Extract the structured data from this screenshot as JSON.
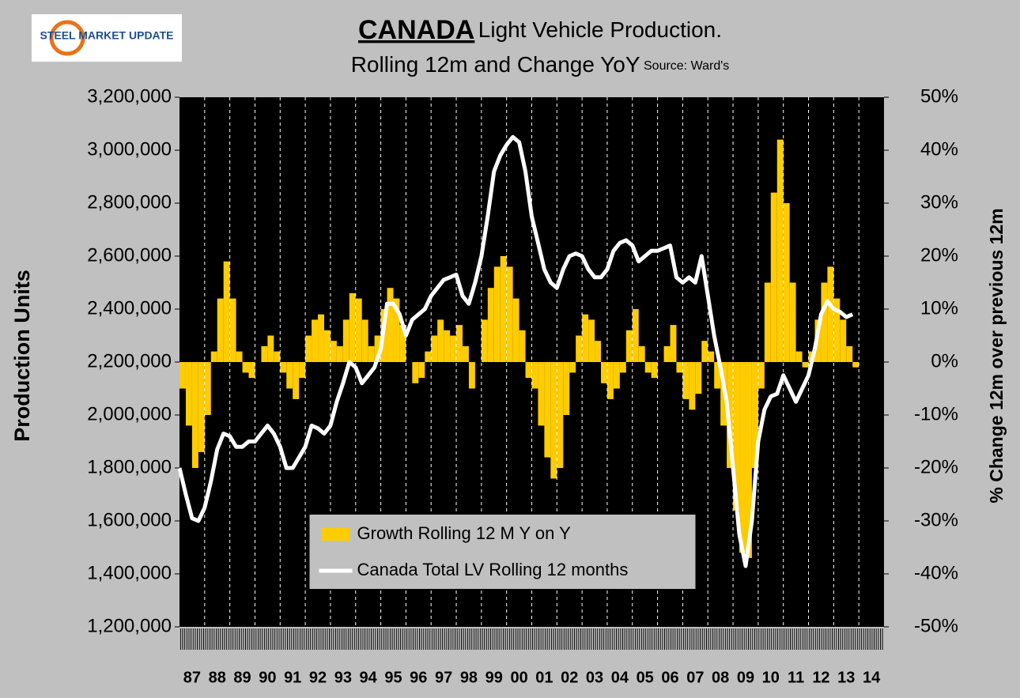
{
  "chart_data": {
    "type": "combo",
    "logo": "STEEL MARKET UPDATE",
    "title": "CANADA",
    "title_rest": "Light Vehicle Production.",
    "subtitle": "Rolling 12m and Change YoY",
    "source": "Source: Ward's",
    "y_label": "Production Units",
    "y2_label": "% Change 12m over previous 12m",
    "legend": "lower center",
    "xlim": [
      1987,
      2015
    ],
    "xticks": [
      {
        "value": 1987,
        "label": "87"
      },
      {
        "value": 1988,
        "label": "88"
      },
      {
        "value": 1989,
        "label": "89"
      },
      {
        "value": 1990,
        "label": "90"
      },
      {
        "value": 1991,
        "label": "91"
      },
      {
        "value": 1992,
        "label": "92"
      },
      {
        "value": 1993,
        "label": "93"
      },
      {
        "value": 1994,
        "label": "94"
      },
      {
        "value": 1995,
        "label": "95"
      },
      {
        "value": 1996,
        "label": "96"
      },
      {
        "value": 1997,
        "label": "97"
      },
      {
        "value": 1998,
        "label": "98"
      },
      {
        "value": 1999,
        "label": "99"
      },
      {
        "value": 2000,
        "label": "00"
      },
      {
        "value": 2001,
        "label": "01"
      },
      {
        "value": 2002,
        "label": "02"
      },
      {
        "value": 2003,
        "label": "03"
      },
      {
        "value": 2004,
        "label": "04"
      },
      {
        "value": 2005,
        "label": "05"
      },
      {
        "value": 2006,
        "label": "06"
      },
      {
        "value": 2007,
        "label": "07"
      },
      {
        "value": 2008,
        "label": "08"
      },
      {
        "value": 2009,
        "label": "09"
      },
      {
        "value": 2010,
        "label": "10"
      },
      {
        "value": 2011,
        "label": "11"
      },
      {
        "value": 2012,
        "label": "12"
      },
      {
        "value": 2013,
        "label": "13"
      },
      {
        "value": 2014,
        "label": "14"
      }
    ],
    "ylim": [
      1200000,
      3200000
    ],
    "yticks": [
      {
        "value": 1200000,
        "label": "1,200,000"
      },
      {
        "value": 1400000,
        "label": "1,400,000"
      },
      {
        "value": 1600000,
        "label": "1,600,000"
      },
      {
        "value": 1800000,
        "label": "1,800,000"
      },
      {
        "value": 2000000,
        "label": "2,000,000"
      },
      {
        "value": 2200000,
        "label": "2,200,000"
      },
      {
        "value": 2400000,
        "label": "2,400,000"
      },
      {
        "value": 2600000,
        "label": "2,600,000"
      },
      {
        "value": 2800000,
        "label": "2,800,000"
      },
      {
        "value": 3000000,
        "label": "3,000,000"
      },
      {
        "value": 3200000,
        "label": "3,200,000"
      }
    ],
    "y2lim": [
      -50,
      50
    ],
    "y2ticks": [
      {
        "value": -50,
        "label": "-50%"
      },
      {
        "value": -40,
        "label": "-40%"
      },
      {
        "value": -30,
        "label": "-30%"
      },
      {
        "value": -20,
        "label": "-20%"
      },
      {
        "value": -10,
        "label": "-10%"
      },
      {
        "value": 0,
        "label": "0%"
      },
      {
        "value": 10,
        "label": "10%"
      },
      {
        "value": 20,
        "label": "20%"
      },
      {
        "value": 30,
        "label": "30%"
      },
      {
        "value": 40,
        "label": "40%"
      },
      {
        "value": 50,
        "label": "50%"
      }
    ],
    "x": [
      1987,
      1987.25,
      1987.5,
      1987.75,
      1988,
      1988.25,
      1988.5,
      1988.75,
      1989,
      1989.25,
      1989.5,
      1989.75,
      1990,
      1990.25,
      1990.5,
      1990.75,
      1991,
      1991.25,
      1991.5,
      1991.75,
      1992,
      1992.25,
      1992.5,
      1992.75,
      1993,
      1993.25,
      1993.5,
      1993.75,
      1994,
      1994.25,
      1994.5,
      1994.75,
      1995,
      1995.25,
      1995.5,
      1995.75,
      1996,
      1996.25,
      1996.5,
      1996.75,
      1997,
      1997.25,
      1997.5,
      1997.75,
      1998,
      1998.25,
      1998.5,
      1998.75,
      1999,
      1999.25,
      1999.5,
      1999.75,
      2000,
      2000.25,
      2000.5,
      2000.75,
      2001,
      2001.25,
      2001.5,
      2001.75,
      2002,
      2002.25,
      2002.5,
      2002.75,
      2003,
      2003.25,
      2003.5,
      2003.75,
      2004,
      2004.25,
      2004.5,
      2004.75,
      2005,
      2005.25,
      2005.5,
      2005.75,
      2006,
      2006.25,
      2006.5,
      2006.75,
      2007,
      2007.25,
      2007.5,
      2007.75,
      2008,
      2008.25,
      2008.5,
      2008.75,
      2009,
      2009.25,
      2009.5,
      2009.75,
      2010,
      2010.25,
      2010.5,
      2010.75,
      2011,
      2011.25,
      2011.5,
      2011.75,
      2012,
      2012.25,
      2012.5,
      2012.75,
      2013,
      2013.25,
      2013.5,
      2013.75
    ],
    "series": [
      {
        "name": "Growth Rolling 12 M Y on Y",
        "type": "bar",
        "axis": "y2",
        "color": "#ffcc00",
        "values": [
          -5,
          -12,
          -20,
          -17,
          -10,
          2,
          12,
          19,
          12,
          2,
          -2,
          -3,
          0,
          3,
          5,
          2,
          -2,
          -5,
          -7,
          -3,
          5,
          8,
          9,
          6,
          4,
          3,
          8,
          13,
          12,
          8,
          3,
          5,
          10,
          14,
          12,
          7,
          0,
          -4,
          -3,
          2,
          5,
          8,
          6,
          5,
          7,
          3,
          -5,
          0,
          8,
          14,
          18,
          20,
          18,
          12,
          6,
          -3,
          -5,
          -12,
          -18,
          -22,
          -20,
          -10,
          -2,
          5,
          9,
          8,
          4,
          -4,
          -7,
          -5,
          -2,
          6,
          10,
          3,
          -2,
          -3,
          0,
          3,
          7,
          -2,
          -7,
          -9,
          -6,
          4,
          2,
          -5,
          -12,
          -20,
          -28,
          -36,
          -37,
          -20,
          -5,
          15,
          32,
          42,
          30,
          15,
          2,
          -1,
          2,
          8,
          15,
          18,
          12,
          8,
          3,
          -1
        ]
      },
      {
        "name": "Canada Total LV Rolling 12 months",
        "type": "line",
        "axis": "y",
        "color": "#ffffff",
        "values": [
          1800000,
          1700000,
          1610000,
          1600000,
          1650000,
          1750000,
          1870000,
          1930000,
          1920000,
          1880000,
          1880000,
          1900000,
          1900000,
          1930000,
          1960000,
          1930000,
          1880000,
          1800000,
          1800000,
          1840000,
          1880000,
          1960000,
          1950000,
          1930000,
          1960000,
          2050000,
          2120000,
          2200000,
          2180000,
          2120000,
          2150000,
          2180000,
          2250000,
          2420000,
          2420000,
          2380000,
          2300000,
          2360000,
          2380000,
          2400000,
          2450000,
          2480000,
          2510000,
          2520000,
          2530000,
          2450000,
          2420000,
          2500000,
          2600000,
          2750000,
          2920000,
          2980000,
          3020000,
          3050000,
          3030000,
          2920000,
          2750000,
          2650000,
          2550000,
          2500000,
          2480000,
          2550000,
          2600000,
          2610000,
          2600000,
          2550000,
          2520000,
          2520000,
          2550000,
          2620000,
          2650000,
          2660000,
          2640000,
          2580000,
          2600000,
          2620000,
          2620000,
          2630000,
          2640000,
          2520000,
          2500000,
          2520000,
          2500000,
          2600000,
          2450000,
          2300000,
          2180000,
          2050000,
          1800000,
          1550000,
          1430000,
          1600000,
          1900000,
          2020000,
          2070000,
          2080000,
          2150000,
          2100000,
          2050000,
          2100000,
          2150000,
          2250000,
          2380000,
          2430000,
          2400000,
          2390000,
          2370000,
          2380000
        ]
      }
    ]
  }
}
